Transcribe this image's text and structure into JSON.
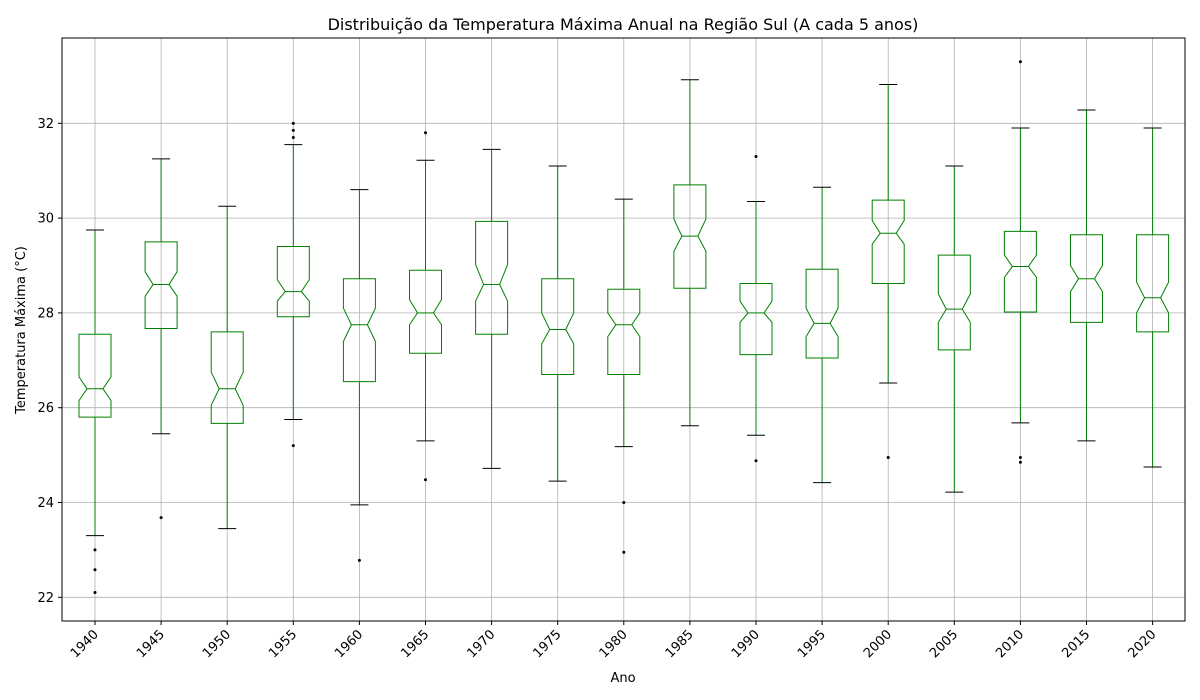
{
  "chart_data": {
    "type": "boxplot",
    "title": "Distribuição da Temperatura Máxima Anual na Região Sul (A cada 5 anos)",
    "xlabel": "Ano",
    "ylabel": "Temperatura Máxima (°C)",
    "ylim": [
      21.5,
      33.8
    ],
    "yticks": [
      22,
      24,
      26,
      28,
      30,
      32
    ],
    "grid": true,
    "notched": true,
    "box_color": "#008000",
    "whisker_color": "#008000",
    "cap_color": "#000000",
    "flier_color": "#000000",
    "categories": [
      "1940",
      "1945",
      "1950",
      "1955",
      "1960",
      "1965",
      "1970",
      "1975",
      "1980",
      "1985",
      "1990",
      "1995",
      "2000",
      "2005",
      "2010",
      "2015",
      "2020"
    ],
    "series": [
      {
        "category": "1940",
        "whisker_low": 23.3,
        "q1": 25.8,
        "median": 26.4,
        "q3": 27.55,
        "whisker_high": 29.75,
        "notch_low": 26.15,
        "notch_high": 26.65,
        "outliers": [
          23.0,
          22.58,
          22.1
        ]
      },
      {
        "category": "1945",
        "whisker_low": 25.45,
        "q1": 27.67,
        "median": 28.6,
        "q3": 29.5,
        "whisker_high": 31.25,
        "notch_low": 28.35,
        "notch_high": 28.87,
        "outliers": [
          23.68
        ]
      },
      {
        "category": "1950",
        "whisker_low": 23.45,
        "q1": 25.67,
        "median": 26.4,
        "q3": 27.6,
        "whisker_high": 30.25,
        "notch_low": 26.05,
        "notch_high": 26.75,
        "outliers": []
      },
      {
        "category": "1955",
        "whisker_low": 25.75,
        "q1": 27.92,
        "median": 28.45,
        "q3": 29.4,
        "whisker_high": 31.55,
        "notch_low": 28.25,
        "notch_high": 28.7,
        "outliers": [
          32.0,
          31.85,
          31.7,
          25.2
        ]
      },
      {
        "category": "1960",
        "whisker_low": 23.95,
        "q1": 26.55,
        "median": 27.75,
        "q3": 28.72,
        "whisker_high": 30.6,
        "notch_low": 27.4,
        "notch_high": 28.1,
        "outliers": [
          22.78
        ]
      },
      {
        "category": "1965",
        "whisker_low": 25.3,
        "q1": 27.15,
        "median": 28.0,
        "q3": 28.9,
        "whisker_high": 31.22,
        "notch_low": 27.75,
        "notch_high": 28.28,
        "outliers": [
          31.8,
          24.48
        ]
      },
      {
        "category": "1970",
        "whisker_low": 24.72,
        "q1": 27.55,
        "median": 28.6,
        "q3": 29.93,
        "whisker_high": 31.45,
        "notch_low": 28.25,
        "notch_high": 29.02,
        "outliers": []
      },
      {
        "category": "1975",
        "whisker_low": 24.45,
        "q1": 26.7,
        "median": 27.65,
        "q3": 28.72,
        "whisker_high": 31.1,
        "notch_low": 27.35,
        "notch_high": 28.0,
        "outliers": []
      },
      {
        "category": "1980",
        "whisker_low": 25.18,
        "q1": 26.7,
        "median": 27.75,
        "q3": 28.5,
        "whisker_high": 30.4,
        "notch_low": 27.5,
        "notch_high": 28.0,
        "outliers": [
          24.0,
          22.95
        ]
      },
      {
        "category": "1985",
        "whisker_low": 25.62,
        "q1": 28.52,
        "median": 29.62,
        "q3": 30.7,
        "whisker_high": 32.92,
        "notch_low": 29.3,
        "notch_high": 29.98,
        "outliers": []
      },
      {
        "category": "1990",
        "whisker_low": 25.42,
        "q1": 27.12,
        "median": 28.0,
        "q3": 28.62,
        "whisker_high": 30.35,
        "notch_low": 27.8,
        "notch_high": 28.25,
        "outliers": [
          31.3,
          24.88
        ]
      },
      {
        "category": "1995",
        "whisker_low": 24.42,
        "q1": 27.05,
        "median": 27.78,
        "q3": 28.92,
        "whisker_high": 30.65,
        "notch_low": 27.5,
        "notch_high": 28.1,
        "outliers": []
      },
      {
        "category": "2000",
        "whisker_low": 26.52,
        "q1": 28.62,
        "median": 29.68,
        "q3": 30.38,
        "whisker_high": 32.82,
        "notch_low": 29.45,
        "notch_high": 29.95,
        "outliers": [
          24.95
        ]
      },
      {
        "category": "2005",
        "whisker_low": 24.22,
        "q1": 27.22,
        "median": 28.08,
        "q3": 29.22,
        "whisker_high": 31.1,
        "notch_low": 27.8,
        "notch_high": 28.4,
        "outliers": []
      },
      {
        "category": "2010",
        "whisker_low": 25.68,
        "q1": 28.02,
        "median": 28.98,
        "q3": 29.72,
        "whisker_high": 31.9,
        "notch_low": 28.75,
        "notch_high": 29.22,
        "outliers": [
          33.3,
          24.95,
          24.85
        ]
      },
      {
        "category": "2015",
        "whisker_low": 25.3,
        "q1": 27.8,
        "median": 28.72,
        "q3": 29.65,
        "whisker_high": 32.28,
        "notch_low": 28.45,
        "notch_high": 29.0,
        "outliers": []
      },
      {
        "category": "2020",
        "whisker_low": 24.75,
        "q1": 27.6,
        "median": 28.32,
        "q3": 29.65,
        "whisker_high": 31.9,
        "notch_low": 28.0,
        "notch_high": 28.65,
        "outliers": []
      }
    ]
  }
}
